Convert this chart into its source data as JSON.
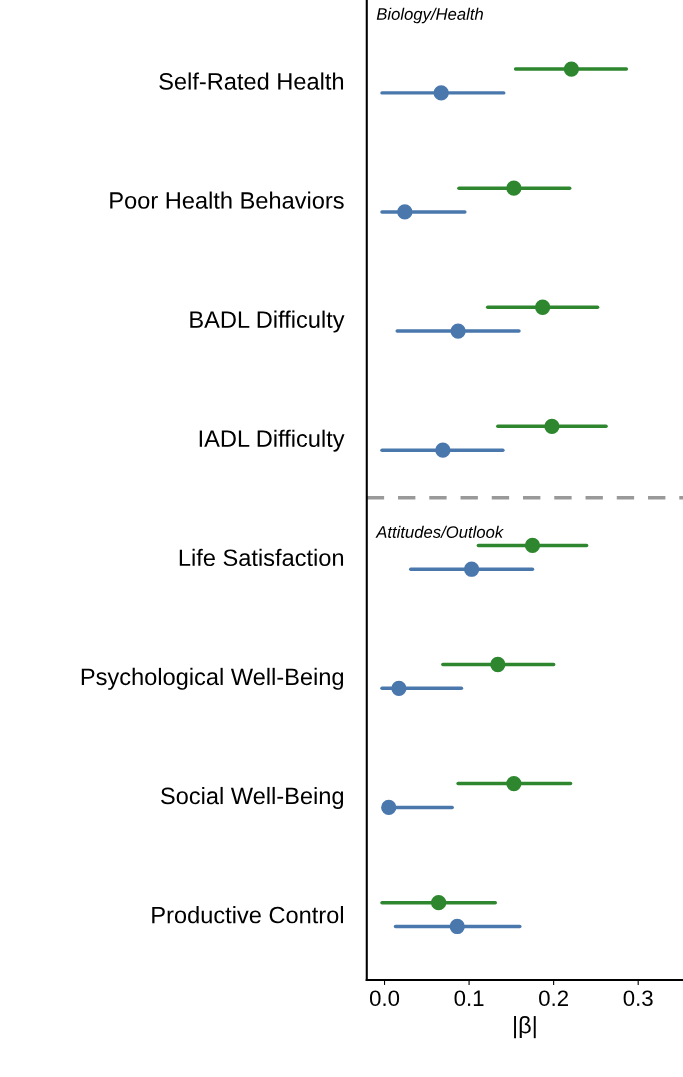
{
  "chart_data": {
    "type": "scatter",
    "orientation": "horizontal",
    "categories": [
      "Self-Rated Health",
      "Poor Health Behaviors",
      "BADL Difficulty",
      "IADL Difficulty",
      "Life Satisfaction",
      "Psychological Well-Being",
      "Social Well-Being",
      "Productive Control"
    ],
    "series": [
      {
        "color": "#2e872e",
        "values": [
          0.221,
          0.153,
          0.187,
          0.198,
          0.175,
          0.134,
          0.153,
          0.064
        ],
        "errors": [
          [
            0.155,
            0.286
          ],
          [
            0.088,
            0.219
          ],
          [
            0.122,
            0.252
          ],
          [
            0.134,
            0.262
          ],
          [
            0.111,
            0.239
          ],
          [
            0.069,
            0.2
          ],
          [
            0.087,
            0.22
          ],
          [
            -0.003,
            0.131
          ]
        ]
      },
      {
        "color": "#4a78ad",
        "values": [
          0.067,
          0.024,
          0.087,
          0.069,
          0.103,
          0.017,
          0.005,
          0.086
        ],
        "errors": [
          [
            -0.003,
            0.141
          ],
          [
            -0.003,
            0.095
          ],
          [
            0.015,
            0.159
          ],
          [
            -0.003,
            0.14
          ],
          [
            0.031,
            0.175
          ],
          [
            -0.003,
            0.091
          ],
          [
            0.0,
            0.08
          ],
          [
            0.013,
            0.16
          ]
        ]
      }
    ],
    "xlabel": "|β|",
    "xlim": [
      -0.021,
      0.353
    ],
    "xticks": [
      {
        "value": 0.0,
        "label": "0.0"
      },
      0.1,
      0.2,
      0.3
    ],
    "annotations": [
      "Biology/Health",
      "Attitudes/Outlook"
    ],
    "marker": "circle",
    "grid": false,
    "legend": false
  }
}
